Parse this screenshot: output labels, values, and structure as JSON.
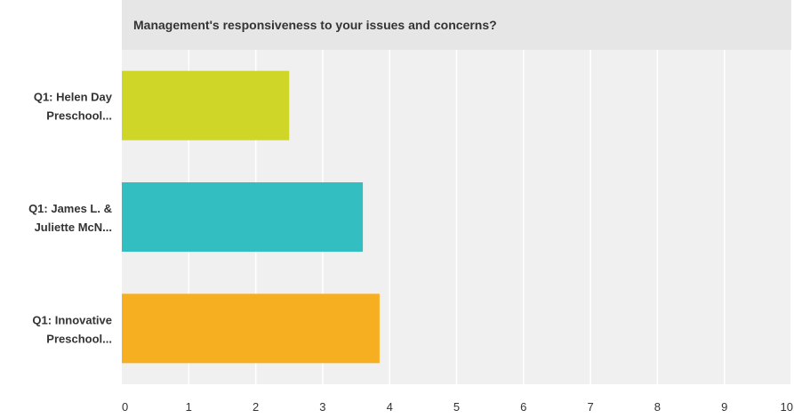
{
  "chart_data": {
    "type": "bar",
    "orientation": "horizontal",
    "title": "Management's responsiveness to your issues and concerns?",
    "categories": [
      [
        "Q1: Helen Day",
        "Preschool..."
      ],
      [
        "Q1: James L. &",
        "Juliette McN..."
      ],
      [
        "Q1: Innovative",
        "Preschool..."
      ]
    ],
    "values": [
      2.5,
      3.6,
      3.85
    ],
    "colors": [
      "#d0d627",
      "#33bfc1",
      "#f7af22"
    ],
    "xlim": [
      0,
      10
    ],
    "xticks": [
      "0",
      "1",
      "2",
      "3",
      "4",
      "5",
      "6",
      "7",
      "8",
      "9",
      "10"
    ],
    "grid": true,
    "legend": "none",
    "background": "#f0f0f0",
    "gridline_color": "#ffffff"
  }
}
